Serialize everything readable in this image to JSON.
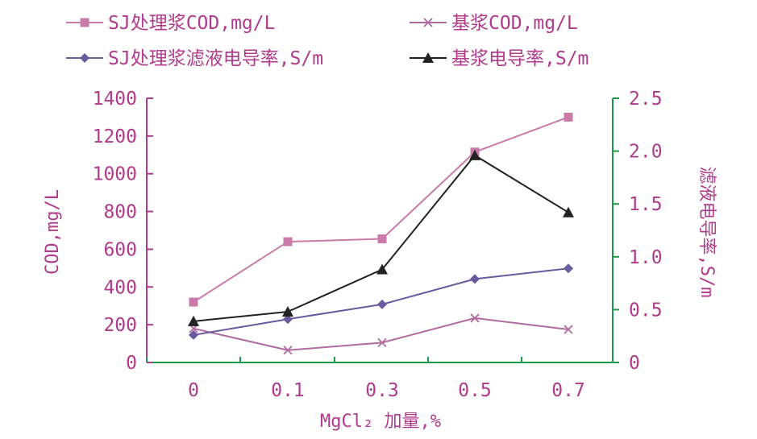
{
  "chart_data": {
    "type": "line",
    "categories": [
      "0",
      "0.1",
      "0.3",
      "0.5",
      "0.7"
    ],
    "xlabel": "MgCl₂ 加量,%",
    "ylabel": "COD,mg/L",
    "ylabel_right": "滤液电导率,S/m",
    "ylim": [
      0,
      1400
    ],
    "ylim_right": [
      0,
      2.5
    ],
    "yticks": [
      "0",
      "200",
      "400",
      "600",
      "800",
      "1000",
      "1200",
      "1400"
    ],
    "yticks_right": [
      "0",
      "0.5",
      "1.0",
      "1.5",
      "2.0",
      "2.5"
    ],
    "legend_position": "top",
    "grid": false,
    "series": [
      {
        "name": "SJ处理浆COD,mg/L",
        "axis": "left",
        "marker": "square",
        "color": "#c97aa8",
        "values": [
          320,
          640,
          655,
          1115,
          1300
        ]
      },
      {
        "name": "基浆COD,mg/L",
        "axis": "left",
        "marker": "x",
        "color": "#b06aa0",
        "values": [
          180,
          65,
          105,
          235,
          175
        ]
      },
      {
        "name": "SJ处理浆滤液电导率,S/m",
        "axis": "right",
        "marker": "diamond",
        "color": "#6a5a9e",
        "values": [
          0.26,
          0.41,
          0.55,
          0.79,
          0.89
        ]
      },
      {
        "name": "基浆电导率,S/m",
        "axis": "right",
        "marker": "triangle",
        "color": "#222222",
        "values": [
          0.39,
          0.48,
          0.88,
          1.96,
          1.42
        ]
      }
    ]
  },
  "colors": {
    "axis_left": "#b03a8c",
    "axis_right": "#1a9a4a",
    "axis_bottom": "#1a9a4a",
    "text": "#b03a8c"
  }
}
